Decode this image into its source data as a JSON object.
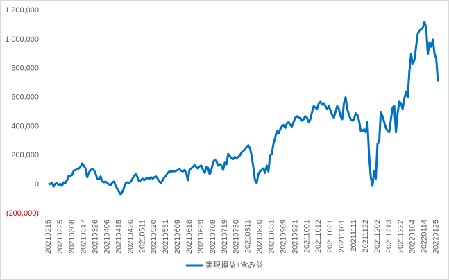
{
  "chart_data": {
    "type": "line",
    "categories": [
      "20210215",
      null,
      null,
      null,
      null,
      null,
      null,
      "20210225",
      null,
      null,
      null,
      null,
      null,
      null,
      "20210308",
      null,
      null,
      null,
      null,
      null,
      null,
      "20210317",
      null,
      null,
      null,
      null,
      null,
      null,
      "20210326",
      null,
      null,
      null,
      null,
      null,
      null,
      "20210406",
      null,
      null,
      null,
      null,
      null,
      null,
      "20210415",
      null,
      null,
      null,
      null,
      null,
      null,
      "20210426",
      null,
      null,
      null,
      null,
      null,
      null,
      "20210511",
      null,
      null,
      null,
      null,
      null,
      null,
      "20210520",
      null,
      null,
      null,
      null,
      null,
      null,
      "20210531",
      null,
      null,
      null,
      null,
      null,
      null,
      "20210609",
      null,
      null,
      null,
      null,
      null,
      null,
      "20210618",
      null,
      null,
      null,
      null,
      null,
      null,
      "20210629",
      null,
      null,
      null,
      null,
      null,
      null,
      "20210708",
      null,
      null,
      null,
      null,
      null,
      null,
      "20210719",
      null,
      null,
      null,
      null,
      null,
      null,
      "20210730",
      null,
      null,
      null,
      null,
      null,
      null,
      "20210811",
      null,
      null,
      null,
      null,
      null,
      null,
      "20210820",
      null,
      null,
      null,
      null,
      null,
      null,
      "20210831",
      null,
      null,
      null,
      null,
      null,
      null,
      "20210909",
      null,
      null,
      null,
      null,
      null,
      null,
      "20210921",
      null,
      null,
      null,
      null,
      null,
      null,
      "20211001",
      null,
      null,
      null,
      null,
      null,
      null,
      "20211012",
      null,
      null,
      null,
      null,
      null,
      null,
      "20211021",
      null,
      null,
      null,
      null,
      null,
      null,
      "20211101",
      null,
      null,
      null,
      null,
      null,
      null,
      "20211111",
      null,
      null,
      null,
      null,
      null,
      null,
      "20211122",
      null,
      null,
      null,
      null,
      null,
      null,
      "20211202",
      null,
      null,
      null,
      null,
      null,
      null,
      "20211213",
      null,
      null,
      null,
      null,
      null,
      null,
      "20211222",
      null,
      null,
      null,
      null,
      null,
      null,
      "20220104",
      null,
      null,
      null,
      null,
      null,
      null,
      "20220114",
      null,
      null,
      null,
      null,
      null,
      null,
      "20220125",
      null
    ],
    "series": [
      {
        "name": "実現損益+含み益",
        "color": "#0070c0",
        "values": [
          0,
          5000,
          10000,
          -15000,
          5000,
          10000,
          -5000,
          5000,
          -10000,
          15000,
          10000,
          30000,
          60000,
          60000,
          65000,
          95000,
          100000,
          105000,
          110000,
          120000,
          145000,
          130000,
          110000,
          50000,
          80000,
          100000,
          105000,
          100000,
          75000,
          40000,
          35000,
          55000,
          20000,
          15000,
          20000,
          10000,
          0,
          -5000,
          15000,
          20000,
          -10000,
          -30000,
          -50000,
          -70000,
          -50000,
          -20000,
          10000,
          15000,
          10000,
          20000,
          40000,
          60000,
          70000,
          50000,
          20000,
          30000,
          40000,
          30000,
          40000,
          45000,
          40000,
          50000,
          40000,
          50000,
          55000,
          40000,
          20000,
          10000,
          30000,
          50000,
          60000,
          80000,
          90000,
          85000,
          95000,
          90000,
          95000,
          100000,
          105000,
          95000,
          90000,
          100000,
          80000,
          30000,
          100000,
          110000,
          120000,
          135000,
          120000,
          110000,
          125000,
          130000,
          100000,
          80000,
          120000,
          115000,
          70000,
          100000,
          150000,
          170000,
          160000,
          130000,
          140000,
          130000,
          100000,
          150000,
          140000,
          210000,
          195000,
          180000,
          175000,
          190000,
          180000,
          190000,
          200000,
          220000,
          230000,
          240000,
          260000,
          270000,
          250000,
          200000,
          120000,
          30000,
          10000,
          70000,
          90000,
          100000,
          110000,
          80000,
          130000,
          90000,
          200000,
          210000,
          280000,
          320000,
          370000,
          350000,
          380000,
          400000,
          410000,
          390000,
          420000,
          430000,
          410000,
          400000,
          430000,
          460000,
          470000,
          460000,
          460000,
          440000,
          450000,
          470000,
          460000,
          430000,
          450000,
          500000,
          540000,
          530000,
          520000,
          560000,
          570000,
          550000,
          560000,
          540000,
          520000,
          540000,
          510000,
          480000,
          460000,
          500000,
          540000,
          520000,
          470000,
          450000,
          560000,
          600000,
          520000,
          480000,
          450000,
          440000,
          450000,
          490000,
          480000,
          440000,
          370000,
          370000,
          380000,
          360000,
          430000,
          200000,
          50000,
          -10000,
          90000,
          40000,
          280000,
          290000,
          500000,
          470000,
          430000,
          390000,
          370000,
          360000,
          450000,
          530000,
          540000,
          360000,
          490000,
          570000,
          560000,
          520000,
          590000,
          640000,
          600000,
          780000,
          900000,
          830000,
          860000,
          950000,
          1040000,
          1060000,
          1070000,
          1080000,
          1120000,
          1080000,
          900000,
          980000,
          950000,
          1000000,
          900000,
          870000,
          710000
        ]
      }
    ],
    "ylim": [
      -200000,
      1200000
    ],
    "yticks": [
      {
        "value": -200000,
        "label": "(200,000)"
      },
      0,
      {
        "value": 200000,
        "label": "200,000"
      },
      {
        "value": 400000,
        "label": "400,000"
      },
      {
        "value": 600000,
        "label": "600,000"
      },
      {
        "value": 800000,
        "label": "800,000"
      },
      {
        "value": 1000000,
        "label": "1,000,000"
      },
      {
        "value": 1200000,
        "label": "1,200,000"
      }
    ],
    "negative_tick_color": "#c00000",
    "grid": false,
    "legend": "bottom"
  }
}
